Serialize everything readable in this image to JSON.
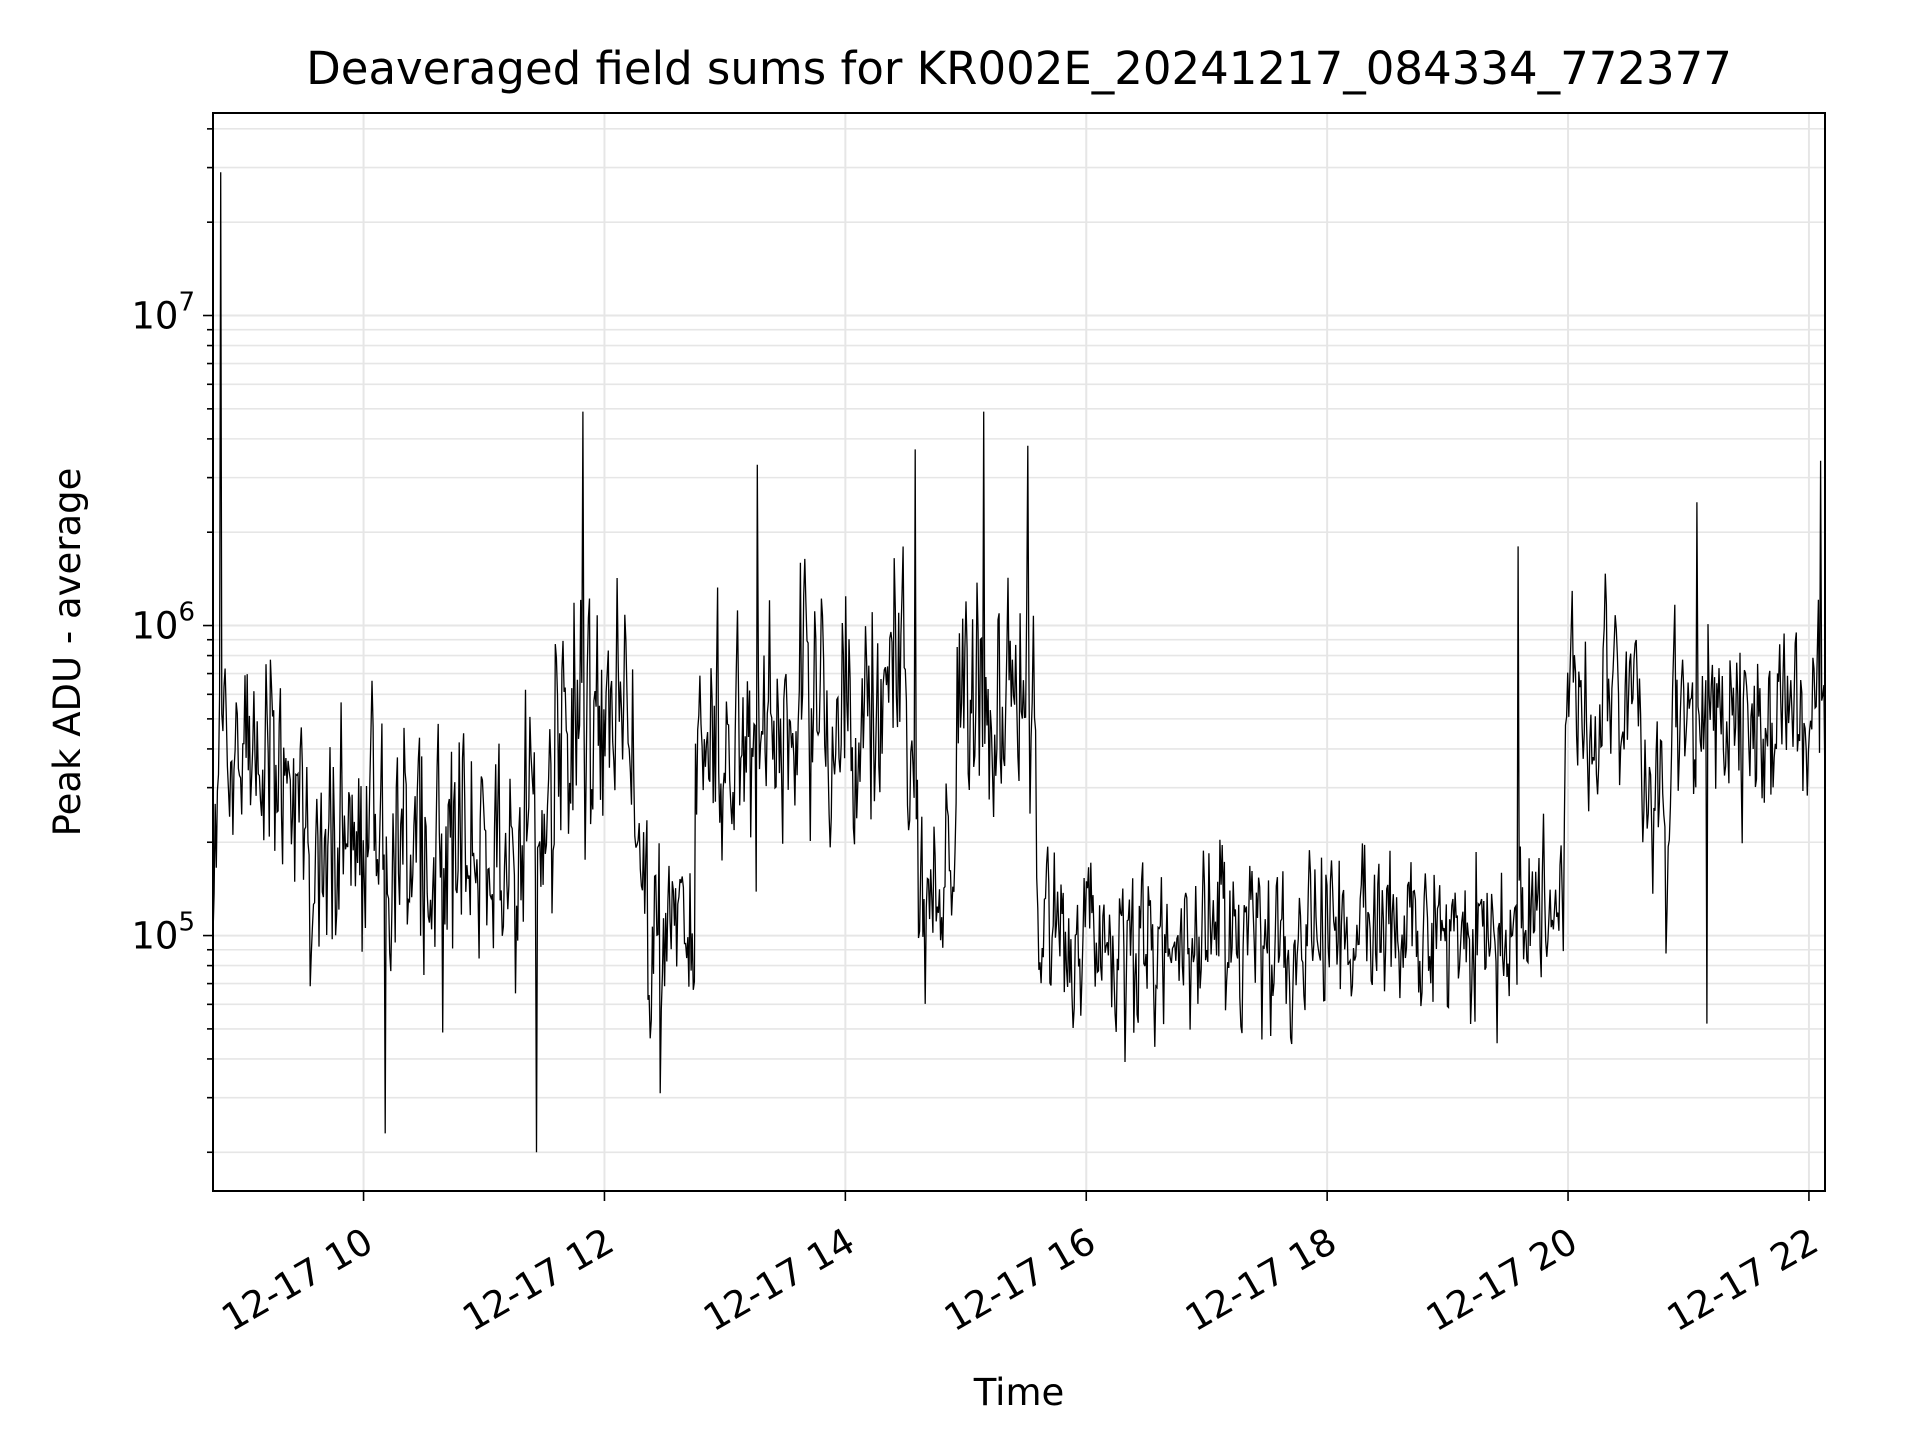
{
  "chart_data": {
    "type": "line",
    "title": "Deaveraged field sums for KR002E_20241217_084334_772377",
    "xlabel": "Time",
    "ylabel": "Peak ADU - average",
    "yscale": "log",
    "grid": true,
    "legend": "none",
    "line_color": "#000000",
    "grid_color": "#e6e6e6",
    "xlim": [
      "2024-12-17 08:45",
      "2024-12-17 22:08"
    ],
    "ylim": [
      15000,
      45000000
    ],
    "x_ticks": [
      {
        "time": "2024-12-17 10:00",
        "label": "12-17 10"
      },
      {
        "time": "2024-12-17 12:00",
        "label": "12-17 12"
      },
      {
        "time": "2024-12-17 14:00",
        "label": "12-17 14"
      },
      {
        "time": "2024-12-17 16:00",
        "label": "12-17 16"
      },
      {
        "time": "2024-12-17 18:00",
        "label": "12-17 18"
      },
      {
        "time": "2024-12-17 20:00",
        "label": "12-17 20"
      },
      {
        "time": "2024-12-17 22:00",
        "label": "12-17 22"
      }
    ],
    "y_ticks": [
      {
        "value": 100000,
        "base": "10",
        "exp": "5"
      },
      {
        "value": 1000000,
        "base": "10",
        "exp": "6"
      },
      {
        "value": 10000000,
        "base": "10",
        "exp": "7"
      }
    ],
    "series": [
      {
        "segments": [
          {
            "start": "2024-12-17 08:45",
            "end": "2024-12-17 09:30",
            "median": 350000,
            "spread": 0.5
          },
          {
            "start": "2024-12-17 09:30",
            "end": "2024-12-17 11:35",
            "median": 190000,
            "spread": 0.55
          },
          {
            "start": "2024-12-17 11:35",
            "end": "2024-12-17 12:15",
            "median": 450000,
            "spread": 0.55
          },
          {
            "start": "2024-12-17 12:15",
            "end": "2024-12-17 12:45",
            "median": 110000,
            "spread": 0.5
          },
          {
            "start": "2024-12-17 12:45",
            "end": "2024-12-17 14:35",
            "median": 480000,
            "spread": 0.55
          },
          {
            "start": "2024-12-17 14:35",
            "end": "2024-12-17 14:55",
            "median": 150000,
            "spread": 0.45
          },
          {
            "start": "2024-12-17 14:55",
            "end": "2024-12-17 15:35",
            "median": 550000,
            "spread": 0.55
          },
          {
            "start": "2024-12-17 15:35",
            "end": "2024-12-17 19:58",
            "median": 105000,
            "spread": 0.38
          },
          {
            "start": "2024-12-17 19:58",
            "end": "2024-12-17 20:35",
            "median": 600000,
            "spread": 0.45
          },
          {
            "start": "2024-12-17 20:35",
            "end": "2024-12-17 20:50",
            "median": 260000,
            "spread": 0.5
          },
          {
            "start": "2024-12-17 20:50",
            "end": "2024-12-17 22:08",
            "median": 480000,
            "spread": 0.45
          }
        ],
        "spikes": [
          {
            "time": "2024-12-17 08:49",
            "value": 29000000
          },
          {
            "time": "2024-12-17 11:26",
            "value": 20000
          },
          {
            "time": "2024-12-17 10:11",
            "value": 23000
          },
          {
            "time": "2024-12-17 11:49",
            "value": 4900000
          },
          {
            "time": "2024-12-17 12:28",
            "value": 31000
          },
          {
            "time": "2024-12-17 13:16",
            "value": 3300000
          },
          {
            "time": "2024-12-17 14:35",
            "value": 3700000
          },
          {
            "time": "2024-12-17 15:09",
            "value": 4900000
          },
          {
            "time": "2024-12-17 15:31",
            "value": 3800000
          },
          {
            "time": "2024-12-17 19:35",
            "value": 1800000
          },
          {
            "time": "2024-12-17 21:04",
            "value": 2500000
          },
          {
            "time": "2024-12-17 22:06",
            "value": 3400000
          },
          {
            "time": "2024-12-17 21:09",
            "value": 52000
          }
        ]
      }
    ]
  }
}
